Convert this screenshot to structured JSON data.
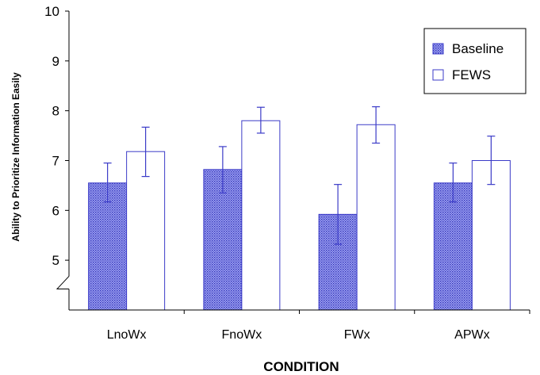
{
  "chart_data": {
    "type": "bar",
    "title": "",
    "xlabel": "CONDITION",
    "ylabel": "Ability to Prioritize Information Easily",
    "ylim": [
      4,
      10
    ],
    "yticks": [
      5,
      6,
      7,
      8,
      9,
      10
    ],
    "axis_break": true,
    "grid": false,
    "legend_position": "top-right",
    "categories": [
      "LnoWx",
      "FnoWx",
      "FWx",
      "APWx"
    ],
    "series": [
      {
        "name": "Baseline",
        "fill": "dotted-blue",
        "color": "#3b3bc8",
        "values": [
          6.55,
          6.82,
          5.92,
          6.55
        ],
        "err_low": [
          6.17,
          6.35,
          5.32,
          6.17
        ],
        "err_high": [
          6.95,
          7.28,
          6.52,
          6.95
        ]
      },
      {
        "name": "FEWS",
        "fill": "white",
        "color": "#3b3bc8",
        "values": [
          7.18,
          7.8,
          7.72,
          7.0
        ],
        "err_low": [
          6.68,
          7.55,
          7.35,
          6.52
        ],
        "err_high": [
          7.67,
          8.07,
          8.08,
          7.49
        ]
      }
    ]
  }
}
